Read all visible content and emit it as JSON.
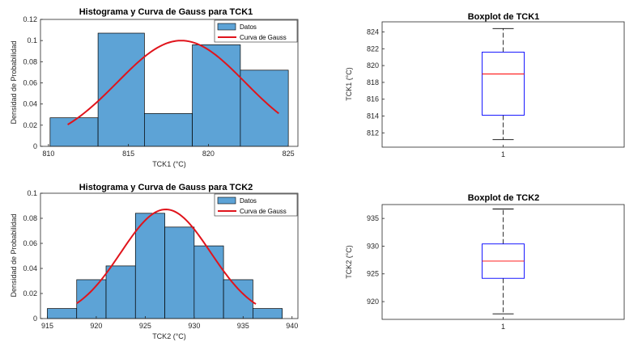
{
  "chart_data": [
    {
      "type": "bar",
      "subtype": "histogram-with-gaussian",
      "title": "Histograma y Curva de Gauss para TCK1",
      "xlabel": "TCK1 (°C)",
      "ylabel": "Densidad de Probabilidad",
      "xlim": [
        809.5,
        825.6
      ],
      "ylim": [
        0,
        0.12
      ],
      "xticks": [
        810,
        815,
        820,
        825
      ],
      "yticks": [
        0,
        0.02,
        0.04,
        0.06,
        0.08,
        0.1,
        0.12
      ],
      "bins": [
        {
          "x0": 810.1,
          "x1": 813.1,
          "value": 0.027
        },
        {
          "x0": 813.1,
          "x1": 816.0,
          "value": 0.107
        },
        {
          "x0": 816.0,
          "x1": 819.0,
          "value": 0.031
        },
        {
          "x0": 819.0,
          "x1": 822.0,
          "value": 0.096
        },
        {
          "x0": 822.0,
          "x1": 825.0,
          "value": 0.072
        }
      ],
      "curve": {
        "mean": 818.3,
        "sd": 3.99,
        "x_start": 811.2,
        "x_end": 824.4
      },
      "legend": [
        "Datos",
        "Curva de Gauss"
      ],
      "legend_position": "top-right",
      "colors": {
        "bar": "#5da3d6",
        "curve": "#e0141c"
      }
    },
    {
      "type": "bar",
      "subtype": "histogram-with-gaussian",
      "title": "Histograma y Curva de Gauss para TCK2",
      "xlabel": "TCK2 (°C)",
      "ylabel": "Densidad de Probabilidad",
      "xlim": [
        914.3,
        940.6
      ],
      "ylim": [
        0,
        0.1
      ],
      "xticks": [
        915,
        920,
        925,
        930,
        935,
        940
      ],
      "yticks": [
        0,
        0.02,
        0.04,
        0.06,
        0.08,
        0.1
      ],
      "bins": [
        {
          "x0": 915.0,
          "x1": 918.0,
          "value": 0.008
        },
        {
          "x0": 918.0,
          "x1": 921.0,
          "value": 0.031
        },
        {
          "x0": 921.0,
          "x1": 924.0,
          "value": 0.042
        },
        {
          "x0": 924.0,
          "x1": 927.0,
          "value": 0.084
        },
        {
          "x0": 927.0,
          "x1": 930.0,
          "value": 0.073
        },
        {
          "x0": 930.0,
          "x1": 933.0,
          "value": 0.058
        },
        {
          "x0": 933.0,
          "x1": 936.0,
          "value": 0.031
        },
        {
          "x0": 936.0,
          "x1": 939.0,
          "value": 0.008
        }
      ],
      "curve": {
        "mean": 927.1,
        "sd": 4.58,
        "x_start": 918.0,
        "x_end": 936.3
      },
      "legend": [
        "Datos",
        "Curva de Gauss"
      ],
      "legend_position": "top-right",
      "colors": {
        "bar": "#5da3d6",
        "curve": "#e0141c"
      }
    },
    {
      "type": "boxplot",
      "title": "Boxplot de TCK1",
      "ylabel": "TCK1 (°C)",
      "xticks": [
        "1"
      ],
      "ylim": [
        810.3,
        825.2
      ],
      "yticks": [
        812,
        814,
        816,
        818,
        820,
        822,
        824
      ],
      "box": {
        "min": 811.2,
        "q1": 814.1,
        "median": 819.0,
        "q3": 821.6,
        "max": 824.4
      },
      "colors": {
        "box": "#0000ff",
        "median": "#ff0000",
        "whisker": "#000000"
      }
    },
    {
      "type": "boxplot",
      "title": "Boxplot de TCK2",
      "ylabel": "TCK2 (°C)",
      "xticks": [
        "1"
      ],
      "ylim": [
        916.8,
        937.5
      ],
      "yticks": [
        920,
        925,
        930,
        935
      ],
      "box": {
        "min": 917.8,
        "q1": 924.2,
        "median": 927.3,
        "q3": 930.4,
        "max": 936.7
      },
      "colors": {
        "box": "#0000ff",
        "median": "#ff0000",
        "whisker": "#000000"
      }
    }
  ]
}
